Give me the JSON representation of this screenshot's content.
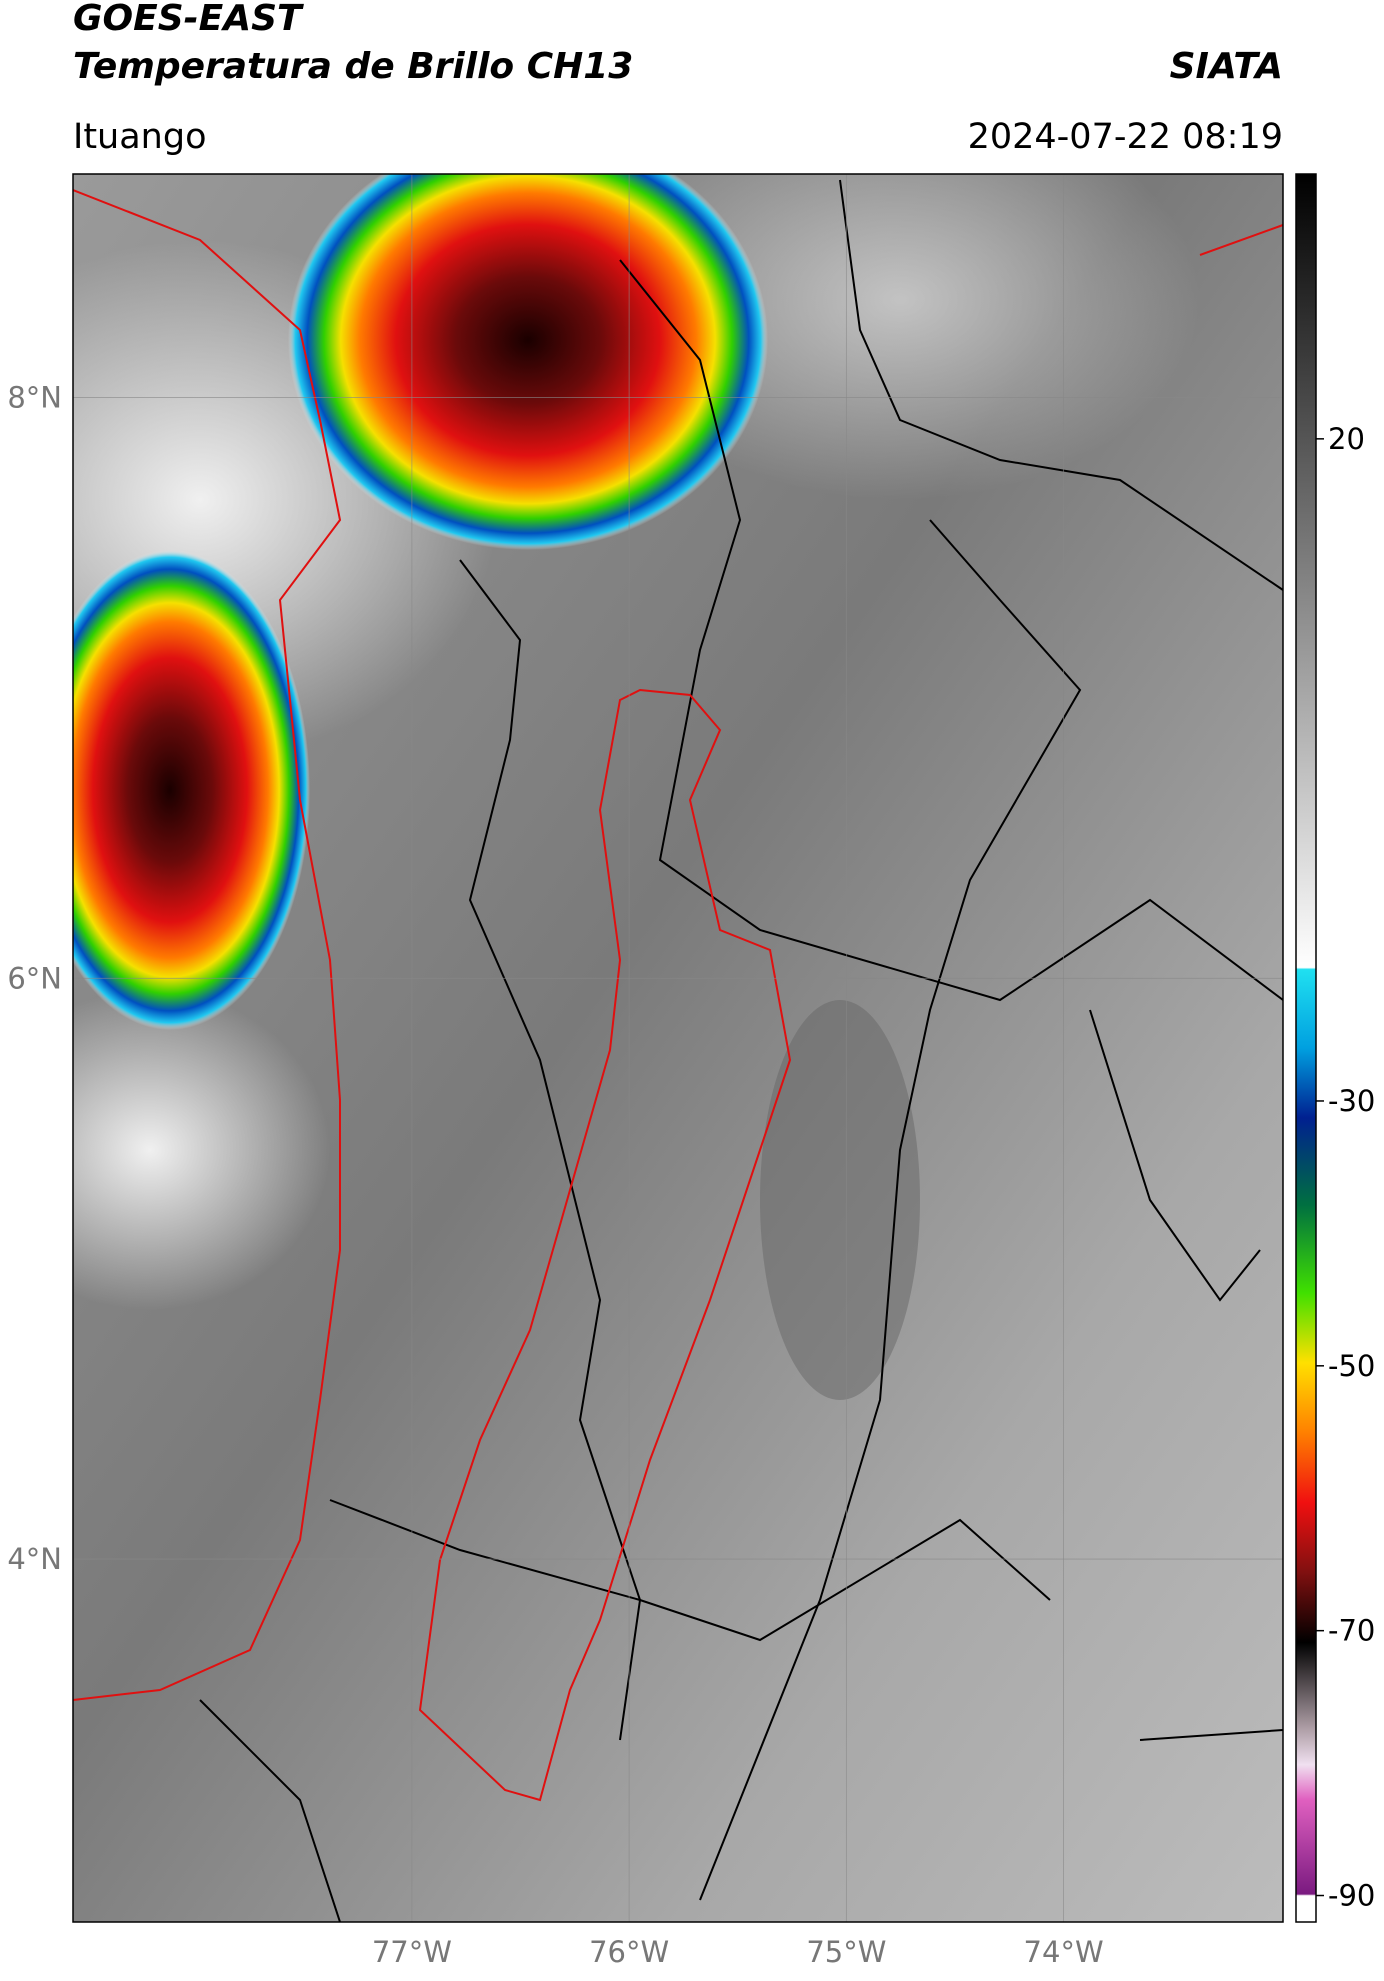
{
  "header": {
    "title_line1": "GOES-EAST",
    "title_line2": "Temperatura de Brillo CH13",
    "source": "SIATA",
    "location": "Ituango",
    "timestamp": "2024-07-22 08:19"
  },
  "map": {
    "xlim": [
      -78.56,
      -72.99
    ],
    "ylim": [
      2.75,
      8.77
    ],
    "xticks": [
      {
        "value": -77,
        "label": "77°W"
      },
      {
        "value": -76,
        "label": "76°W"
      },
      {
        "value": -75,
        "label": "75°W"
      },
      {
        "value": -74,
        "label": "74°W"
      }
    ],
    "yticks": [
      {
        "value": 4,
        "label": "4°N"
      },
      {
        "value": 6,
        "label": "6°N"
      },
      {
        "value": 8,
        "label": "8°N"
      }
    ],
    "grid": true
  },
  "colorbar": {
    "lim": [
      -92,
      40
    ],
    "ticks": [
      20,
      -30,
      -50,
      -70,
      -90
    ]
  }
}
